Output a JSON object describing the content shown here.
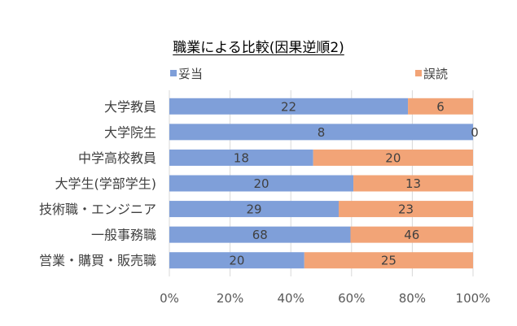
{
  "chart_data": {
    "type": "bar",
    "orientation": "horizontal",
    "stacked": "percent",
    "title": "職業による比較(因果逆順2)",
    "categories": [
      "大学教員",
      "大学院生",
      "中学高校教員",
      "大学生(学部学生)",
      "技術職・エンジニア",
      "一般事務職",
      "営業・購買・販売職"
    ],
    "series": [
      {
        "name": "妥当",
        "color": "#7f9fd9",
        "values": [
          22,
          8,
          18,
          20,
          29,
          68,
          20
        ]
      },
      {
        "name": "誤読",
        "color": "#f2a477",
        "values": [
          6,
          0,
          20,
          13,
          23,
          46,
          25
        ]
      }
    ],
    "xlim": [
      0,
      100
    ],
    "x_ticks": [
      "0%",
      "20%",
      "40%",
      "60%",
      "80%",
      "100%"
    ],
    "grid": true,
    "legend_position": "top"
  }
}
